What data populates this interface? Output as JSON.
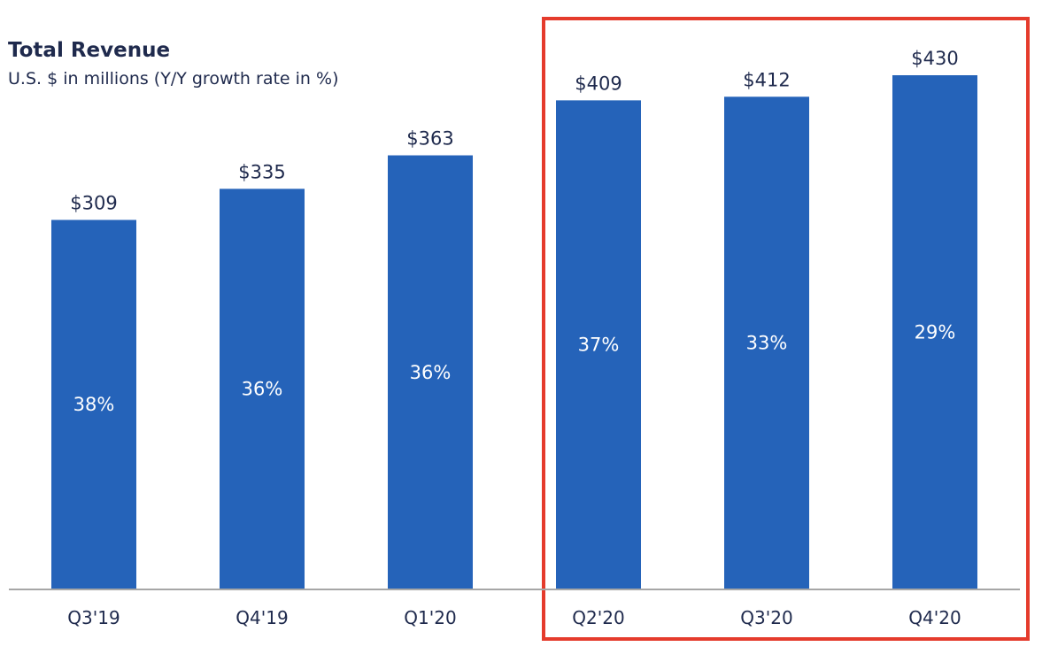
{
  "chart_data": {
    "type": "bar",
    "title": "Total Revenue",
    "subtitle": "U.S. $ in millions (Y/Y growth rate in %)",
    "categories": [
      "Q3'19",
      "Q4'19",
      "Q1'20",
      "Q2'20",
      "Q3'20",
      "Q4'20"
    ],
    "values": [
      309,
      335,
      363,
      409,
      412,
      430
    ],
    "value_labels": [
      "$309",
      "$335",
      "$363",
      "$409",
      "$412",
      "$430"
    ],
    "growth_labels": [
      "38%",
      "36%",
      "36%",
      "37%",
      "33%",
      "29%"
    ],
    "growth_rates": [
      38,
      36,
      36,
      37,
      33,
      29
    ],
    "xlabel": "",
    "ylabel": "",
    "ylim": [
      0,
      430
    ],
    "grid": false,
    "highlight": {
      "categories": [
        "Q2'20",
        "Q3'20",
        "Q4'20"
      ],
      "color": "#e53b2c"
    },
    "colors": {
      "bar": "#2563b9",
      "text": "#1f2a4d",
      "axis": "#a6a6a6"
    }
  }
}
